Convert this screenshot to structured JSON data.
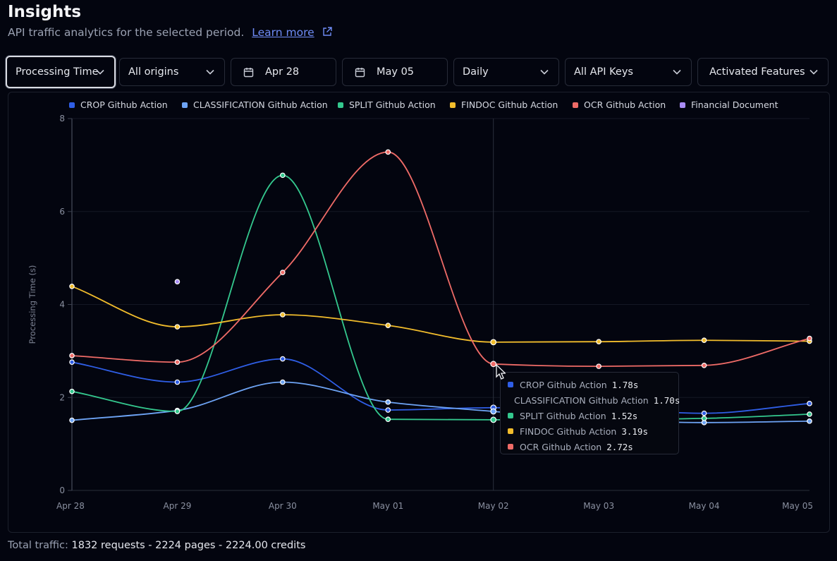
{
  "page": {
    "title": "Insights",
    "subtitle": "API traffic analytics for the selected period.",
    "learn_more": "Learn more"
  },
  "filters": {
    "metric": "Processing Time",
    "origins": "All origins",
    "start_date": "Apr 28",
    "end_date": "May 05",
    "granularity": "Daily",
    "api_keys": "All API Keys",
    "features": "Activated Features"
  },
  "tooltip": {
    "rows": [
      {
        "label": "CROP Github Action",
        "value": "1.78s",
        "color": "#2f5ee6"
      },
      {
        "label": "CLASSIFICATION Github Action",
        "value": "1.70s",
        "color": "#6ea4f5"
      },
      {
        "label": "SPLIT Github Action",
        "value": "1.52s",
        "color": "#34c88e"
      },
      {
        "label": "FINDOC Github Action",
        "value": "3.19s",
        "color": "#f2bd2c"
      },
      {
        "label": "OCR Github Action",
        "value": "2.72s",
        "color": "#ef6b67"
      }
    ]
  },
  "footer": {
    "label": "Total traffic:",
    "value": "1832 requests - 2224 pages - 2224.00 credits"
  },
  "chart_data": {
    "type": "line",
    "ylabel": "Processing Time (s)",
    "xlabel": "",
    "ylim": [
      0,
      8
    ],
    "yticks": [
      0,
      2,
      4,
      6,
      8
    ],
    "grid": true,
    "legend_position": "top",
    "categories": [
      "Apr 28",
      "Apr 29",
      "Apr 30",
      "May 01",
      "May 02",
      "May 03",
      "May 04",
      "May 05"
    ],
    "series": [
      {
        "name": "CROP Github Action",
        "color": "#2f5ee6",
        "values": [
          2.76,
          2.33,
          2.83,
          1.73,
          1.78,
          1.75,
          1.66,
          1.87
        ]
      },
      {
        "name": "CLASSIFICATION Github Action",
        "color": "#6ea4f5",
        "values": [
          1.51,
          1.72,
          2.33,
          1.9,
          1.7,
          1.52,
          1.46,
          1.49
        ]
      },
      {
        "name": "SPLIT Github Action",
        "color": "#34c88e",
        "values": [
          2.13,
          1.7,
          6.78,
          1.53,
          1.52,
          1.52,
          1.55,
          1.64
        ]
      },
      {
        "name": "FINDOC Github Action",
        "color": "#f2bd2c",
        "values": [
          4.39,
          3.52,
          3.78,
          3.55,
          3.19,
          3.2,
          3.23,
          3.21
        ]
      },
      {
        "name": "OCR Github Action",
        "color": "#ef6b67",
        "values": [
          2.9,
          2.76,
          4.69,
          7.28,
          2.72,
          2.67,
          2.69,
          3.27
        ]
      },
      {
        "name": "Financial Document",
        "color": "#a98cf5",
        "values": [
          null,
          4.49,
          null,
          null,
          null,
          null,
          null,
          null
        ]
      }
    ],
    "hover_category": "May 02"
  }
}
